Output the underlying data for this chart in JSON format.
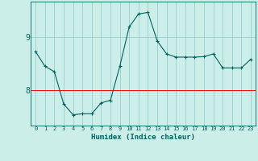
{
  "x": [
    0,
    1,
    2,
    3,
    4,
    5,
    6,
    7,
    8,
    9,
    10,
    11,
    12,
    13,
    14,
    15,
    16,
    17,
    18,
    19,
    20,
    21,
    22,
    23
  ],
  "y": [
    8.72,
    8.45,
    8.35,
    7.75,
    7.55,
    7.57,
    7.57,
    7.77,
    7.82,
    8.45,
    9.18,
    9.42,
    9.45,
    8.92,
    8.68,
    8.62,
    8.62,
    8.62,
    8.63,
    8.68,
    8.42,
    8.42,
    8.42,
    8.58
  ],
  "xlabel": "Humidex (Indice chaleur)",
  "bg_color": "#cceee8",
  "line_color": "#006060",
  "marker_color": "#006060",
  "grid_color": "#99cccc",
  "spine_color": "#006060",
  "label_color": "#006060",
  "red_line_y": 8.0,
  "ylim": [
    7.35,
    9.65
  ],
  "yticks": [
    8,
    9
  ],
  "xticks": [
    0,
    1,
    2,
    3,
    4,
    5,
    6,
    7,
    8,
    9,
    10,
    11,
    12,
    13,
    14,
    15,
    16,
    17,
    18,
    19,
    20,
    21,
    22,
    23
  ],
  "figsize": [
    3.2,
    2.0
  ],
  "dpi": 100
}
